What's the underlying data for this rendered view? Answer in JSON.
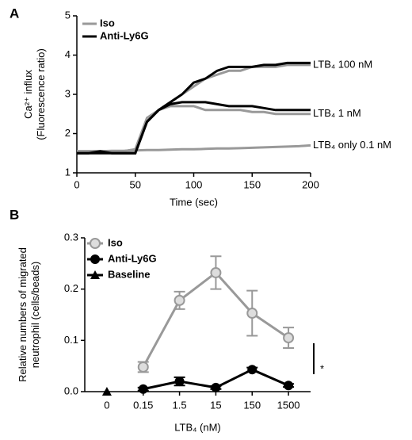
{
  "chart_data": [
    {
      "type": "line",
      "panel": "A",
      "ylabel": [
        "Ca²⁺ influx",
        "(Fluorescence ratio)"
      ],
      "xlabel": "Time (sec)",
      "x": [
        0,
        10,
        20,
        30,
        40,
        50,
        60,
        70,
        80,
        90,
        100,
        110,
        120,
        130,
        140,
        150,
        160,
        170,
        180,
        190,
        200
      ],
      "xlim": [
        0,
        200
      ],
      "xticks": [
        0,
        50,
        100,
        150,
        200
      ],
      "ylim": [
        1,
        5
      ],
      "yticks": [
        1,
        2,
        3,
        4,
        5
      ],
      "series": [
        {
          "name": "Iso",
          "color": "#999999",
          "traces": [
            {
              "values": [
                1.55,
                1.55,
                1.55,
                1.55,
                1.55,
                1.6,
                2.3,
                2.6,
                2.8,
                3.0,
                3.2,
                3.4,
                3.5,
                3.6,
                3.6,
                3.7,
                3.7,
                3.7,
                3.75,
                3.75,
                3.75
              ]
            },
            {
              "values": [
                1.55,
                1.55,
                1.55,
                1.55,
                1.55,
                1.6,
                2.4,
                2.6,
                2.7,
                2.7,
                2.7,
                2.6,
                2.6,
                2.6,
                2.6,
                2.55,
                2.55,
                2.5,
                2.5,
                2.5,
                2.5
              ]
            },
            {
              "values": [
                1.55,
                1.55,
                1.55,
                1.56,
                1.56,
                1.57,
                1.58,
                1.58,
                1.59,
                1.6,
                1.6,
                1.61,
                1.62,
                1.62,
                1.63,
                1.64,
                1.65,
                1.66,
                1.67,
                1.68,
                1.7
              ]
            }
          ]
        },
        {
          "name": "Anti-Ly6G",
          "color": "#000000",
          "traces": [
            {
              "values": [
                1.5,
                1.5,
                1.55,
                1.5,
                1.5,
                1.5,
                2.3,
                2.6,
                2.8,
                3.0,
                3.3,
                3.4,
                3.6,
                3.7,
                3.7,
                3.7,
                3.75,
                3.75,
                3.8,
                3.8,
                3.8
              ]
            },
            {
              "values": [
                1.5,
                1.5,
                1.5,
                1.5,
                1.5,
                1.5,
                2.3,
                2.6,
                2.75,
                2.8,
                2.8,
                2.8,
                2.75,
                2.7,
                2.7,
                2.7,
                2.65,
                2.6,
                2.6,
                2.6,
                2.6
              ]
            }
          ]
        }
      ],
      "annotations": [
        "LTB₄ 100 nM",
        "LTB₄ 1 nM",
        "LTB₄ only 0.1 nM"
      ]
    },
    {
      "type": "line",
      "panel": "B",
      "ylabel": [
        "Relative numbers of migrated",
        "neutrophil (cells/beads)"
      ],
      "xlabel": "LTB₄ (nM)",
      "categories": [
        "0",
        "0.15",
        "1.5",
        "15",
        "150",
        "1500"
      ],
      "ylim": [
        0,
        0.3
      ],
      "yticks": [
        {
          "value": 0,
          "label": "0.0"
        },
        0.1,
        0.2,
        0.3
      ],
      "series": [
        {
          "name": "Iso",
          "color": "#999999",
          "marker": "open-circle",
          "values": [
            null,
            0.048,
            0.178,
            0.232,
            0.153,
            0.105
          ],
          "errors": [
            null,
            0.01,
            0.017,
            0.032,
            0.044,
            0.02
          ]
        },
        {
          "name": "Anti-Ly6G",
          "color": "#000000",
          "marker": "circle",
          "values": [
            null,
            0.005,
            0.02,
            0.008,
            0.043,
            0.012
          ],
          "errors": [
            null,
            0.003,
            0.008,
            0.003,
            0.004,
            0.003
          ]
        },
        {
          "name": "Baseline",
          "color": "#000000",
          "marker": "triangle",
          "values": [
            0,
            null,
            null,
            null,
            null,
            null
          ]
        }
      ],
      "annotations": [
        "*"
      ]
    }
  ]
}
